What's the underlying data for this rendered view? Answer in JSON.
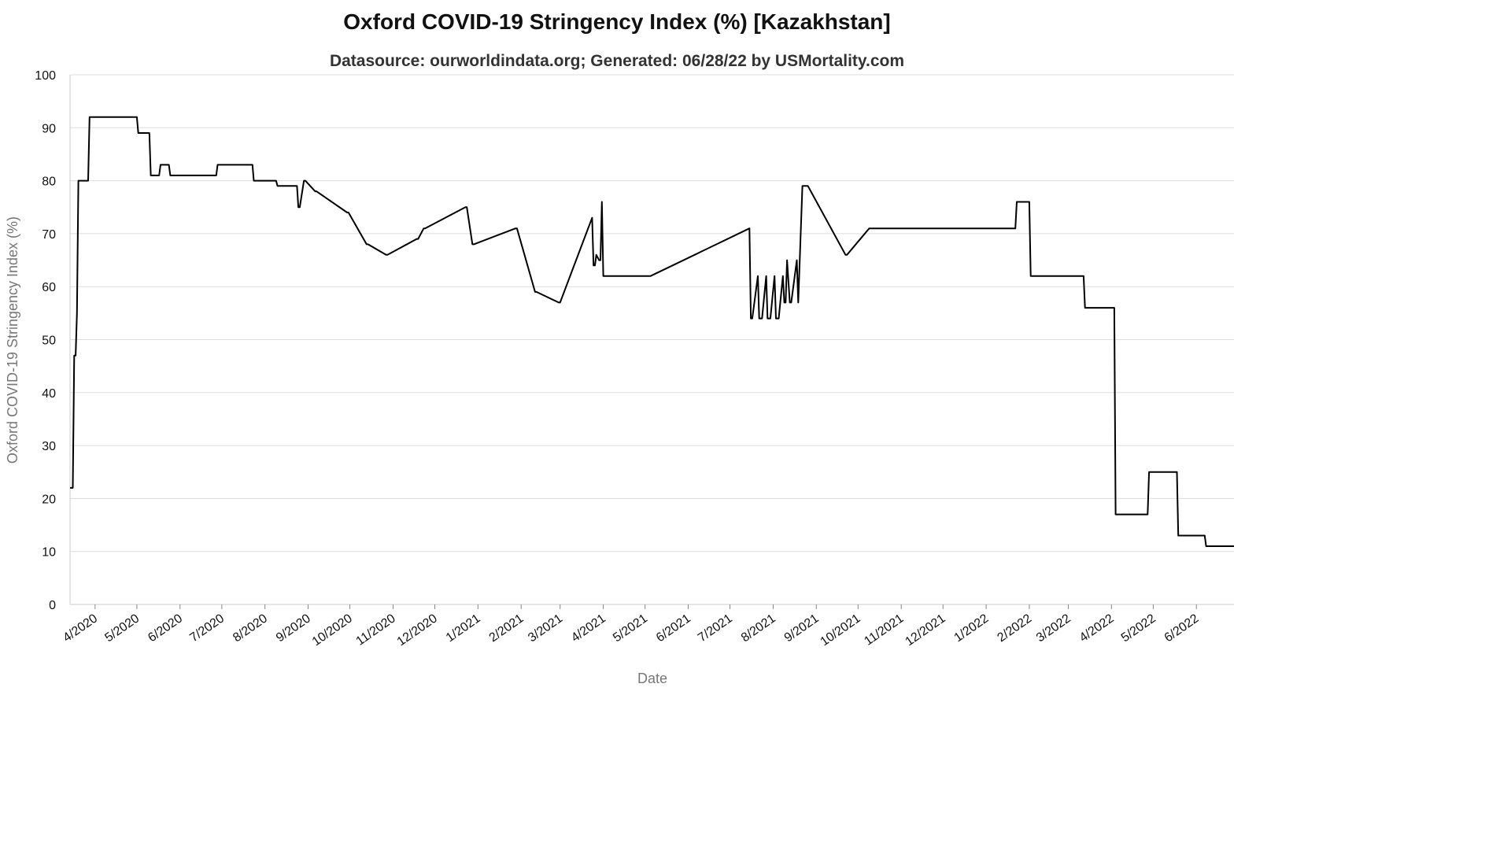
{
  "chart_data": {
    "type": "line",
    "title": "Oxford COVID-19 Stringency Index (%) [Kazakhstan]",
    "subtitle": "Datasource: ourworldindata.org; Generated: 06/28/22 by USMortality.com",
    "xlabel": "Date",
    "ylabel": "Oxford COVID-19 Stringency Index (%)",
    "ylim": [
      0,
      100
    ],
    "xlim": [
      "2020-03-14",
      "2022-06-28"
    ],
    "yticks": [
      0,
      10,
      20,
      30,
      40,
      50,
      60,
      70,
      80,
      90,
      100
    ],
    "xticks": [
      {
        "label": "4/2020",
        "date": "2020-04-01"
      },
      {
        "label": "5/2020",
        "date": "2020-05-01"
      },
      {
        "label": "6/2020",
        "date": "2020-06-01"
      },
      {
        "label": "7/2020",
        "date": "2020-07-01"
      },
      {
        "label": "8/2020",
        "date": "2020-08-01"
      },
      {
        "label": "9/2020",
        "date": "2020-09-01"
      },
      {
        "label": "10/2020",
        "date": "2020-10-01"
      },
      {
        "label": "11/2020",
        "date": "2020-11-01"
      },
      {
        "label": "12/2020",
        "date": "2020-12-01"
      },
      {
        "label": "1/2021",
        "date": "2021-01-01"
      },
      {
        "label": "2/2021",
        "date": "2021-02-01"
      },
      {
        "label": "3/2021",
        "date": "2021-03-01"
      },
      {
        "label": "4/2021",
        "date": "2021-04-01"
      },
      {
        "label": "5/2021",
        "date": "2021-05-01"
      },
      {
        "label": "6/2021",
        "date": "2021-06-01"
      },
      {
        "label": "7/2021",
        "date": "2021-07-01"
      },
      {
        "label": "8/2021",
        "date": "2021-08-01"
      },
      {
        "label": "9/2021",
        "date": "2021-09-01"
      },
      {
        "label": "10/2021",
        "date": "2021-10-01"
      },
      {
        "label": "11/2021",
        "date": "2021-11-01"
      },
      {
        "label": "12/2021",
        "date": "2021-12-01"
      },
      {
        "label": "1/2022",
        "date": "2022-01-01"
      },
      {
        "label": "2/2022",
        "date": "2022-02-01"
      },
      {
        "label": "3/2022",
        "date": "2022-03-01"
      },
      {
        "label": "4/2022",
        "date": "2022-04-01"
      },
      {
        "label": "5/2022",
        "date": "2022-05-01"
      },
      {
        "label": "6/2022",
        "date": "2022-06-01"
      }
    ],
    "grid": true,
    "line_color": "#000000",
    "grid_color": "#dddddd",
    "series": [
      {
        "x": [
          "2020-03-14",
          "2020-03-16",
          "2020-03-17",
          "2020-03-18",
          "2020-03-19",
          "2020-03-20",
          "2020-03-21",
          "2020-03-23",
          "2020-03-27",
          "2020-03-28",
          "2020-03-30",
          "2020-03-31",
          "2020-04-01",
          "2020-05-01",
          "2020-05-02",
          "2020-05-10",
          "2020-05-11",
          "2020-05-17",
          "2020-05-18",
          "2020-05-24",
          "2020-05-25",
          "2020-06-27",
          "2020-06-28",
          "2020-07-23",
          "2020-07-24",
          "2020-08-09",
          "2020-08-10",
          "2020-08-24",
          "2020-08-25",
          "2020-08-26",
          "2020-08-29",
          "2020-08-30",
          "2020-09-06",
          "2020-09-07",
          "2020-09-29",
          "2020-09-30",
          "2020-10-13",
          "2020-10-14",
          "2020-10-27",
          "2020-10-28",
          "2020-11-18",
          "2020-11-19",
          "2020-11-23",
          "2020-11-24",
          "2020-12-23",
          "2020-12-24",
          "2020-12-28",
          "2020-12-29",
          "2021-01-28",
          "2021-01-29",
          "2021-02-11",
          "2021-02-12",
          "2021-02-28",
          "2021-03-01",
          "2021-03-24",
          "2021-03-25",
          "2021-03-26",
          "2021-03-27",
          "2021-03-29",
          "2021-03-30",
          "2021-03-31",
          "2021-04-01",
          "2021-04-05",
          "2021-04-06",
          "2021-04-07",
          "2021-04-08",
          "2021-04-09",
          "2021-04-27",
          "2021-04-28",
          "2021-05-04",
          "2021-05-05",
          "2021-07-15",
          "2021-07-16",
          "2021-07-17",
          "2021-07-21",
          "2021-07-22",
          "2021-07-23",
          "2021-07-24",
          "2021-07-27",
          "2021-07-28",
          "2021-07-29",
          "2021-07-30",
          "2021-08-02",
          "2021-08-03",
          "2021-08-04",
          "2021-08-05",
          "2021-08-08",
          "2021-08-09",
          "2021-08-10",
          "2021-08-11",
          "2021-08-13",
          "2021-08-14",
          "2021-08-18",
          "2021-08-19",
          "2021-08-22",
          "2021-08-23",
          "2021-08-24",
          "2021-08-25",
          "2021-08-26",
          "2021-09-22",
          "2021-09-23",
          "2021-10-09",
          "2021-10-10",
          "2022-01-22",
          "2022-01-23",
          "2022-02-01",
          "2022-02-02",
          "2022-03-12",
          "2022-03-13",
          "2022-04-03",
          "2022-04-04",
          "2022-04-27",
          "2022-04-28",
          "2022-05-18",
          "2022-05-19",
          "2022-06-07",
          "2022-06-08",
          "2022-06-28"
        ],
        "y": [
          22,
          22,
          47,
          47,
          55,
          80,
          80,
          80,
          80,
          92,
          92,
          92,
          92,
          92,
          89,
          89,
          81,
          81,
          83,
          83,
          81,
          81,
          83,
          83,
          80,
          80,
          79,
          79,
          75,
          75,
          80,
          80,
          78,
          78,
          74,
          74,
          68,
          68,
          66,
          66,
          69,
          69,
          71,
          71,
          75,
          75,
          68,
          68,
          71,
          71,
          59,
          59,
          57,
          57,
          73,
          64,
          64,
          66,
          65,
          65,
          76,
          62,
          62,
          62,
          62,
          62,
          62,
          62,
          62,
          62,
          62,
          71,
          54,
          54,
          62,
          54,
          54,
          54,
          62,
          54,
          54,
          54,
          62,
          54,
          54,
          54,
          62,
          57,
          57,
          65,
          57,
          57,
          65,
          57,
          79,
          79,
          79,
          79,
          79,
          66,
          66,
          71,
          71,
          71,
          76,
          76,
          62,
          62,
          56,
          56,
          17,
          17,
          25,
          25,
          13,
          13,
          11,
          11
        ],
        "y_note": ""
      }
    ]
  }
}
